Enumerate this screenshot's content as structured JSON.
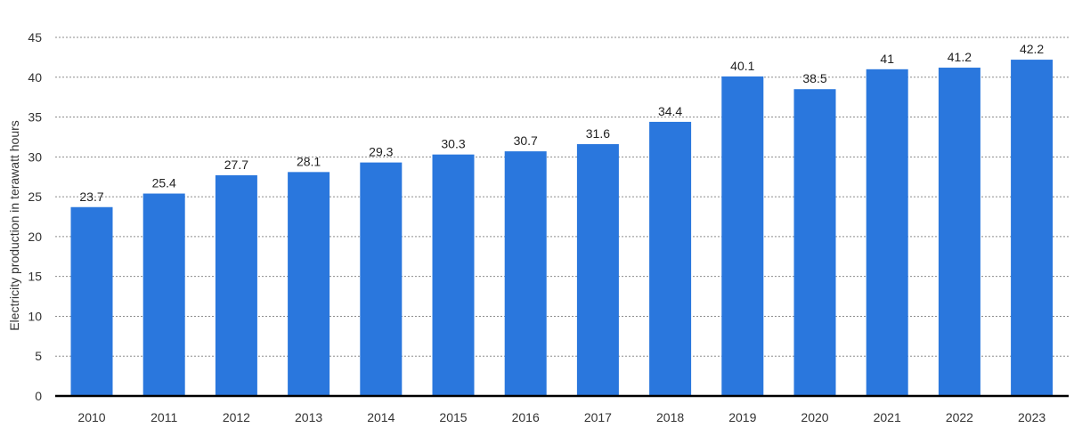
{
  "chart_data": {
    "type": "bar",
    "title": "",
    "xlabel": "",
    "ylabel": "Electricity production in terawatt hours",
    "categories": [
      "2010",
      "2011",
      "2012",
      "2013",
      "2014",
      "2015",
      "2016",
      "2017",
      "2018",
      "2019",
      "2020",
      "2021",
      "2022",
      "2023"
    ],
    "values": [
      23.7,
      25.4,
      27.7,
      28.1,
      29.3,
      30.3,
      30.7,
      31.6,
      34.4,
      40.1,
      38.5,
      41,
      41.2,
      42.2
    ],
    "value_labels": [
      "23.7",
      "25.4",
      "27.7",
      "28.1",
      "29.3",
      "30.3",
      "30.7",
      "31.6",
      "34.4",
      "40.1",
      "38.5",
      "41",
      "41.2",
      "42.2"
    ],
    "ylim": [
      0,
      45
    ],
    "yticks": [
      0,
      5,
      10,
      15,
      20,
      25,
      30,
      35,
      40,
      45
    ],
    "grid": true,
    "legend": false,
    "bar_color": "#2a77dd"
  }
}
